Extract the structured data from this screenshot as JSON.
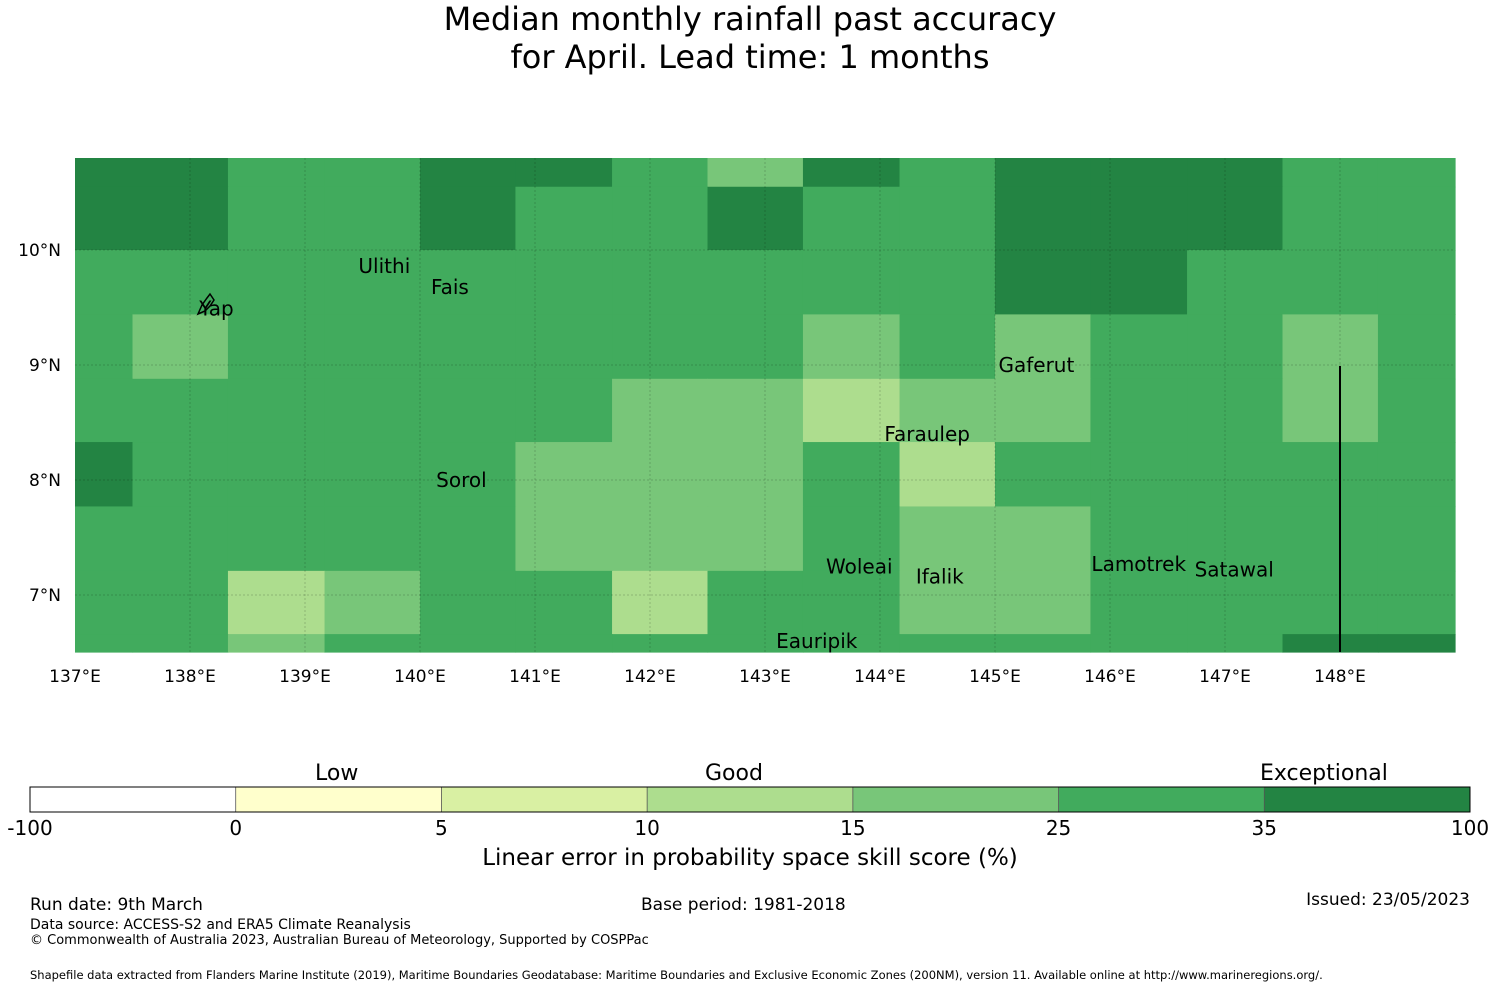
{
  "title": {
    "line1": "Median monthly rainfall past accuracy",
    "line2": "for April. Lead time: 1 months"
  },
  "map": {
    "lon_ticks": [
      "137°E",
      "138°E",
      "139°E",
      "140°E",
      "141°E",
      "142°E",
      "143°E",
      "144°E",
      "145°E",
      "146°E",
      "147°E",
      "148°E"
    ],
    "lat_ticks": [
      "10°N",
      "9°N",
      "8°N",
      "7°N"
    ],
    "places": [
      {
        "name": "Ulithi"
      },
      {
        "name": "Fais"
      },
      {
        "name": "Yap"
      },
      {
        "name": "Gaferut"
      },
      {
        "name": "Faraulep"
      },
      {
        "name": "Sorol"
      },
      {
        "name": "Woleai"
      },
      {
        "name": "Ifalik"
      },
      {
        "name": "Lamotrek"
      },
      {
        "name": "Satawal"
      },
      {
        "name": "Eauripik"
      }
    ],
    "grid_columns_bounds_lon": [
      137,
      137.5,
      138.33,
      139.17,
      140,
      140.83,
      141.67,
      142.5,
      143.33,
      144.17,
      145,
      145.83,
      146.67,
      147.5,
      148.33,
      149
    ],
    "grid_rows_bounds_lat": [
      10.8,
      10.55,
      10.0,
      9.44,
      8.88,
      8.33,
      7.77,
      7.21,
      6.66,
      6.5
    ],
    "cell_skill_classes": [
      [
        "35",
        "35",
        "25",
        "25",
        "35",
        "35",
        "25",
        "15",
        "35",
        "25",
        "35",
        "35",
        "35",
        "25",
        "25"
      ],
      [
        "35",
        "35",
        "25",
        "25",
        "35",
        "25",
        "25",
        "35",
        "25",
        "25",
        "35",
        "35",
        "35",
        "25",
        "25"
      ],
      [
        "25",
        "25",
        "25",
        "25",
        "25",
        "25",
        "25",
        "25",
        "25",
        "25",
        "35",
        "35",
        "25",
        "25",
        "25"
      ],
      [
        "25",
        "15",
        "25",
        "25",
        "25",
        "25",
        "25",
        "25",
        "15",
        "25",
        "15",
        "25",
        "25",
        "15",
        "25"
      ],
      [
        "25",
        "25",
        "25",
        "25",
        "25",
        "25",
        "15",
        "15",
        "10",
        "15",
        "15",
        "25",
        "25",
        "15",
        "25"
      ],
      [
        "35",
        "25",
        "25",
        "25",
        "25",
        "15",
        "15",
        "15",
        "25",
        "10",
        "25",
        "25",
        "25",
        "25",
        "25"
      ],
      [
        "25",
        "25",
        "25",
        "25",
        "25",
        "15",
        "15",
        "15",
        "25",
        "15",
        "15",
        "25",
        "25",
        "25",
        "25"
      ],
      [
        "25",
        "25",
        "10",
        "15",
        "25",
        "25",
        "10",
        "25",
        "25",
        "15",
        "15",
        "25",
        "25",
        "25",
        "25"
      ],
      [
        "25",
        "25",
        "15",
        "25",
        "25",
        "25",
        "25",
        "25",
        "25",
        "25",
        "25",
        "25",
        "25",
        "35",
        "35"
      ]
    ]
  },
  "colorbar": {
    "categories": [
      {
        "from": "-100",
        "to": "0",
        "color": "#ffffff"
      },
      {
        "from": "0",
        "to": "5",
        "color": "#ffffcc"
      },
      {
        "from": "5",
        "to": "10",
        "color": "#d9f0a3"
      },
      {
        "from": "10",
        "to": "15",
        "color": "#addd8e"
      },
      {
        "from": "15",
        "to": "25",
        "color": "#78c679"
      },
      {
        "from": "25",
        "to": "35",
        "color": "#41ab5d"
      },
      {
        "from": "35",
        "to": "100",
        "color": "#238443"
      }
    ],
    "ticks": [
      "-100",
      "0",
      "5",
      "10",
      "15",
      "25",
      "35",
      "100"
    ],
    "labels": {
      "low": "Low",
      "good": "Good",
      "exceptional": "Exceptional"
    },
    "axis_title": "Linear error in probability space skill score (%)"
  },
  "footer": {
    "run_date": "Run date: 9th March",
    "base_period": "Base period: 1981-2018",
    "issued": "Issued: 23/05/2023",
    "data_source": "Data source: ACCESS-S2 and ERA5 Climate Reanalysis",
    "copyright": "© Commonwealth of Australia 2023, Australian Bureau of Meteorology, Supported by COSPPac",
    "shapefile": "Shapefile data extracted from Flanders Marine Institute (2019), Maritime Boundaries Geodatabase: Maritime Boundaries and Exclusive Economic Zones (200NM), version 11. Available online at http://www.marineregions.org/."
  }
}
